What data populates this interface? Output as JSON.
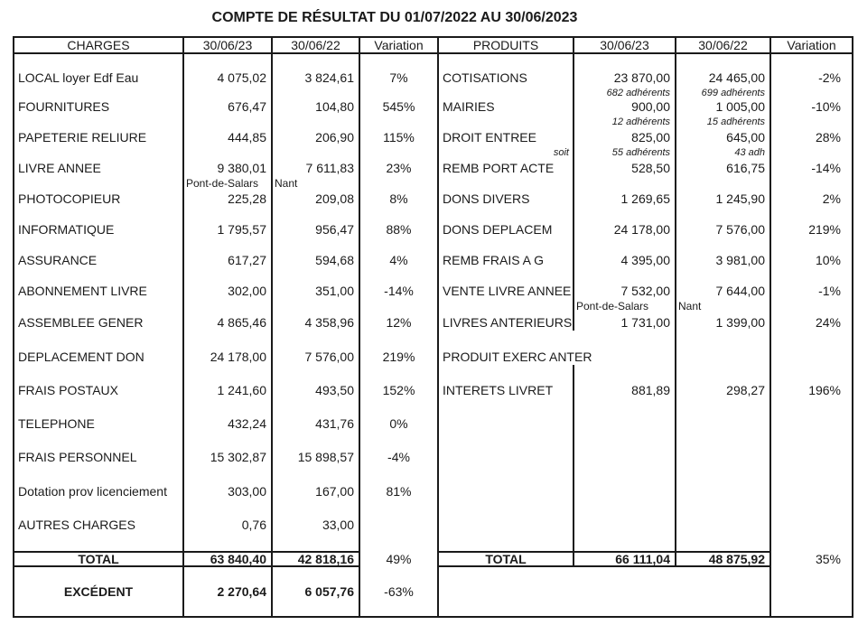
{
  "title": "COMPTE DE RÉSULTAT DU 01/07/2022 AU 30/06/2023",
  "colors": {
    "text": "#1a1a1a",
    "border": "#1a1a1a",
    "background": "#ffffff"
  },
  "table": {
    "headers": {
      "left": [
        "CHARGES",
        "30/06/23",
        "30/06/22",
        "Variation"
      ],
      "right": [
        "PRODUITS",
        "30/06/23",
        "30/06/22",
        "Variation"
      ]
    },
    "rows": [
      {
        "left": {
          "label": "LOCAL loyer Edf Eau",
          "v23": "4 075,02",
          "v22": "3 824,61",
          "var": "7%"
        },
        "right": {
          "label": "COTISATIONS",
          "v23": "23 870,00",
          "v22": "24 465,00",
          "var": "-2%",
          "sub23": "682 adhérents",
          "sub22": "699 adhérents"
        }
      },
      {
        "left": {
          "label": "FOURNITURES",
          "v23": "676,47",
          "v22": "104,80",
          "var": "545%"
        },
        "right": {
          "label": "MAIRIES",
          "v23": "900,00",
          "v22": "1 005,00",
          "var": "-10%",
          "sub23": "12 adhérents",
          "sub22": "15 adhérents"
        }
      },
      {
        "left": {
          "label": "PAPETERIE RELIURE",
          "v23": "444,85",
          "v22": "206,90",
          "var": "115%"
        },
        "right": {
          "label": "DROIT ENTREE",
          "v23": "825,00",
          "v22": "645,00",
          "var": "28%",
          "subLabel": "soit",
          "sub23": "55 adhérents",
          "sub22": "43 adh"
        }
      },
      {
        "left": {
          "label": "LIVRE ANNEE",
          "v23": "9 380,01",
          "v22": "7 611,83",
          "var": "23%",
          "sub23": "Pont-de-Salars",
          "sub22": "Nant"
        },
        "right": {
          "label": "REMB PORT ACTE",
          "v23": "528,50",
          "v22": "616,75",
          "var": "-14%"
        }
      },
      {
        "left": {
          "label": "PHOTOCOPIEUR",
          "v23": "225,28",
          "v22": "209,08",
          "var": "8%"
        },
        "right": {
          "label": "DONS DIVERS",
          "v23": "1 269,65",
          "v22": "1 245,90",
          "var": "2%"
        }
      },
      {
        "left": {
          "label": "INFORMATIQUE",
          "v23": "1 795,57",
          "v22": "956,47",
          "var": "88%"
        },
        "right": {
          "label": "DONS DEPLACEM",
          "v23": "24 178,00",
          "v22": "7 576,00",
          "var": "219%"
        }
      },
      {
        "left": {
          "label": "ASSURANCE",
          "v23": "617,27",
          "v22": "594,68",
          "var": "4%"
        },
        "right": {
          "label": "REMB FRAIS A G",
          "v23": "4 395,00",
          "v22": "3 981,00",
          "var": "10%"
        }
      },
      {
        "left": {
          "label": "ABONNEMENT LIVRE",
          "v23": "302,00",
          "v22": "351,00",
          "var": "-14%"
        },
        "right": {
          "label": "VENTE LIVRE ANNEE",
          "v23": "7 532,00",
          "v22": "7 644,00",
          "var": "-1%",
          "sub23": "Pont-de-Salars",
          "sub22": "Nant"
        }
      },
      {
        "left": {
          "label": "ASSEMBLEE GENER",
          "v23": "4 865,46",
          "v22": "4 358,96",
          "var": "12%"
        },
        "right": {
          "label": "LIVRES ANTERIEURS",
          "v23": "1 731,00",
          "v22": "1 399,00",
          "var": "24%"
        }
      },
      {
        "left": {
          "label": "DEPLACEMENT DON",
          "v23": "24 178,00",
          "v22": "7 576,00",
          "var": "219%"
        },
        "right": {
          "label": "PRODUIT EXERC ANTER"
        }
      },
      {
        "left": {
          "label": "FRAIS POSTAUX",
          "v23": "1 241,60",
          "v22": "493,50",
          "var": "152%"
        },
        "right": {
          "label": "INTERETS LIVRET",
          "v23": "881,89",
          "v22": "298,27",
          "var": "196%"
        }
      },
      {
        "left": {
          "label": "TELEPHONE",
          "v23": "432,24",
          "v22": "431,76",
          "var": "0%"
        },
        "right": {}
      },
      {
        "left": {
          "label": "FRAIS PERSONNEL",
          "v23": "15 302,87",
          "v22": "15 898,57",
          "var": "-4%"
        },
        "right": {}
      },
      {
        "left": {
          "label": "Dotation prov licenciement",
          "v23": "303,00",
          "v22": "167,00",
          "var": "81%"
        },
        "right": {}
      },
      {
        "left": {
          "label": "AUTRES CHARGES",
          "v23": "0,76",
          "v22": "33,00"
        },
        "right": {}
      }
    ],
    "totals": {
      "left": {
        "label": "TOTAL",
        "v23": "63 840,40",
        "v22": "42 818,16",
        "var": "49%"
      },
      "right": {
        "label": "TOTAL",
        "v23": "66 111,04",
        "v22": "48 875,92",
        "var": "35%"
      },
      "excedent": {
        "label": "EXCÉDENT",
        "v23": "2 270,64",
        "v22": "6 057,76",
        "var": "-63%"
      }
    }
  }
}
